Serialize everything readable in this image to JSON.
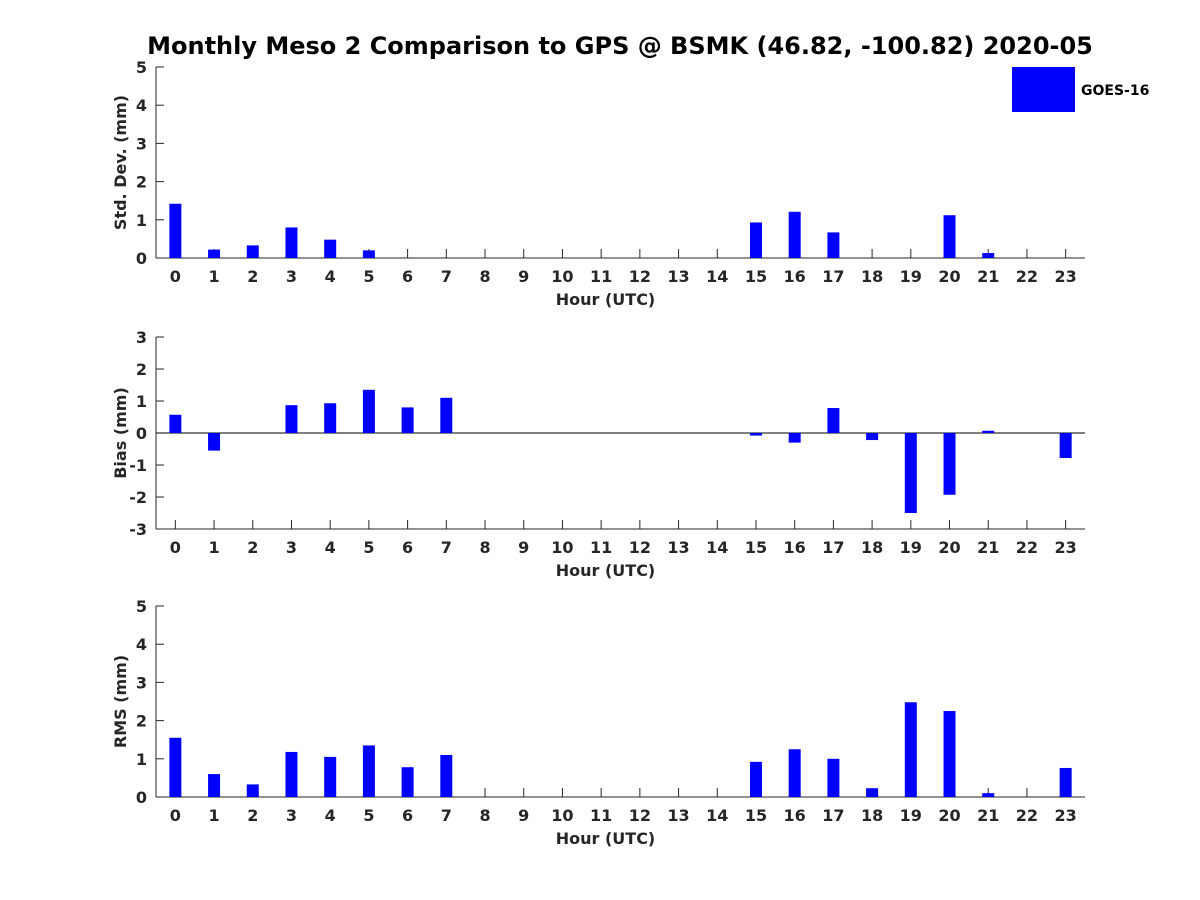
{
  "title": "Monthly Meso 2 Comparison to GPS @ BSMK (46.82, -100.82) 2020-05",
  "legend": {
    "label": "GOES-16",
    "placement": "top-right"
  },
  "colors": {
    "bar": "#0000ff",
    "axis": "#262626"
  },
  "chart_data": [
    {
      "type": "bar",
      "title": "Monthly Meso 2 Comparison to GPS @ BSMK (46.82, -100.82) 2020-05",
      "xlabel": "Hour (UTC)",
      "ylabel": "Std. Dev. (mm)",
      "ylim": [
        0,
        5
      ],
      "yticks": [
        0,
        1,
        2,
        3,
        4,
        5
      ],
      "grid": false,
      "categories": [
        "0",
        "1",
        "2",
        "3",
        "4",
        "5",
        "6",
        "7",
        "8",
        "9",
        "10",
        "11",
        "12",
        "13",
        "14",
        "15",
        "16",
        "17",
        "18",
        "19",
        "20",
        "21",
        "22",
        "23"
      ],
      "series": [
        {
          "name": "GOES-16",
          "values": [
            1.42,
            0.22,
            0.33,
            0.8,
            0.48,
            0.2,
            null,
            null,
            null,
            null,
            null,
            null,
            null,
            null,
            null,
            0.93,
            1.21,
            0.67,
            null,
            null,
            1.12,
            0.13,
            null,
            null
          ]
        }
      ]
    },
    {
      "type": "bar",
      "xlabel": "Hour (UTC)",
      "ylabel": "Bias (mm)",
      "ylim": [
        -3,
        3
      ],
      "yticks": [
        -3,
        -2,
        -1,
        0,
        1,
        2,
        3
      ],
      "grid": false,
      "categories": [
        "0",
        "1",
        "2",
        "3",
        "4",
        "5",
        "6",
        "7",
        "8",
        "9",
        "10",
        "11",
        "12",
        "13",
        "14",
        "15",
        "16",
        "17",
        "18",
        "19",
        "20",
        "21",
        "22",
        "23"
      ],
      "series": [
        {
          "name": "GOES-16",
          "values": [
            0.57,
            -0.55,
            null,
            0.87,
            0.93,
            1.35,
            0.8,
            1.1,
            null,
            null,
            null,
            null,
            null,
            null,
            null,
            -0.08,
            -0.3,
            0.78,
            -0.22,
            -2.5,
            -1.93,
            0.07,
            null,
            -0.78
          ]
        }
      ]
    },
    {
      "type": "bar",
      "xlabel": "Hour (UTC)",
      "ylabel": "RMS (mm)",
      "ylim": [
        0,
        5
      ],
      "yticks": [
        0,
        1,
        2,
        3,
        4,
        5
      ],
      "grid": false,
      "categories": [
        "0",
        "1",
        "2",
        "3",
        "4",
        "5",
        "6",
        "7",
        "8",
        "9",
        "10",
        "11",
        "12",
        "13",
        "14",
        "15",
        "16",
        "17",
        "18",
        "19",
        "20",
        "21",
        "22",
        "23"
      ],
      "series": [
        {
          "name": "GOES-16",
          "values": [
            1.55,
            0.6,
            0.33,
            1.18,
            1.05,
            1.35,
            0.78,
            1.1,
            null,
            null,
            null,
            null,
            null,
            null,
            null,
            0.92,
            1.25,
            1.0,
            0.23,
            2.48,
            2.25,
            0.1,
            null,
            0.76
          ]
        }
      ]
    }
  ]
}
